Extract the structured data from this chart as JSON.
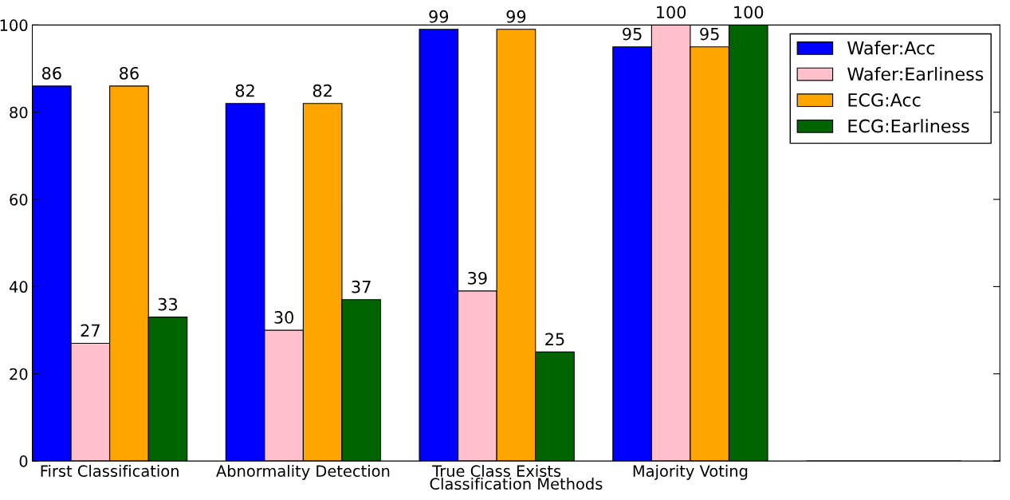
{
  "chart_data": {
    "type": "bar",
    "xlabel": "Classification Methods",
    "categories": [
      "First Classification",
      "Abnormality Detection",
      "True Class Exists",
      "Majority Voting",
      null
    ],
    "series": [
      {
        "name": "Wafer:Acc",
        "color": "#0000ff",
        "values": [
          86,
          82,
          99,
          95,
          0
        ],
        "value_labels": [
          "86",
          "82",
          "99",
          "95",
          null
        ]
      },
      {
        "name": "Wafer:Earliness",
        "color": "#ffc0cb",
        "values": [
          27,
          30,
          39,
          100,
          0
        ],
        "value_labels": [
          "27",
          "30",
          "39",
          "100",
          null
        ]
      },
      {
        "name": "ECG:Acc",
        "color": "#ffa500",
        "values": [
          86,
          82,
          99,
          95,
          0
        ],
        "value_labels": [
          "86",
          "82",
          "99",
          "95",
          null
        ]
      },
      {
        "name": "ECG:Earliness",
        "color": "#006400",
        "values": [
          33,
          37,
          25,
          100,
          0
        ],
        "value_labels": [
          "33",
          "37",
          "25",
          "100",
          null
        ]
      }
    ],
    "ylim": [
      0,
      100
    ],
    "yticks": [
      0,
      20,
      40,
      60,
      80,
      100
    ],
    "legend": "top right",
    "grid": false
  }
}
